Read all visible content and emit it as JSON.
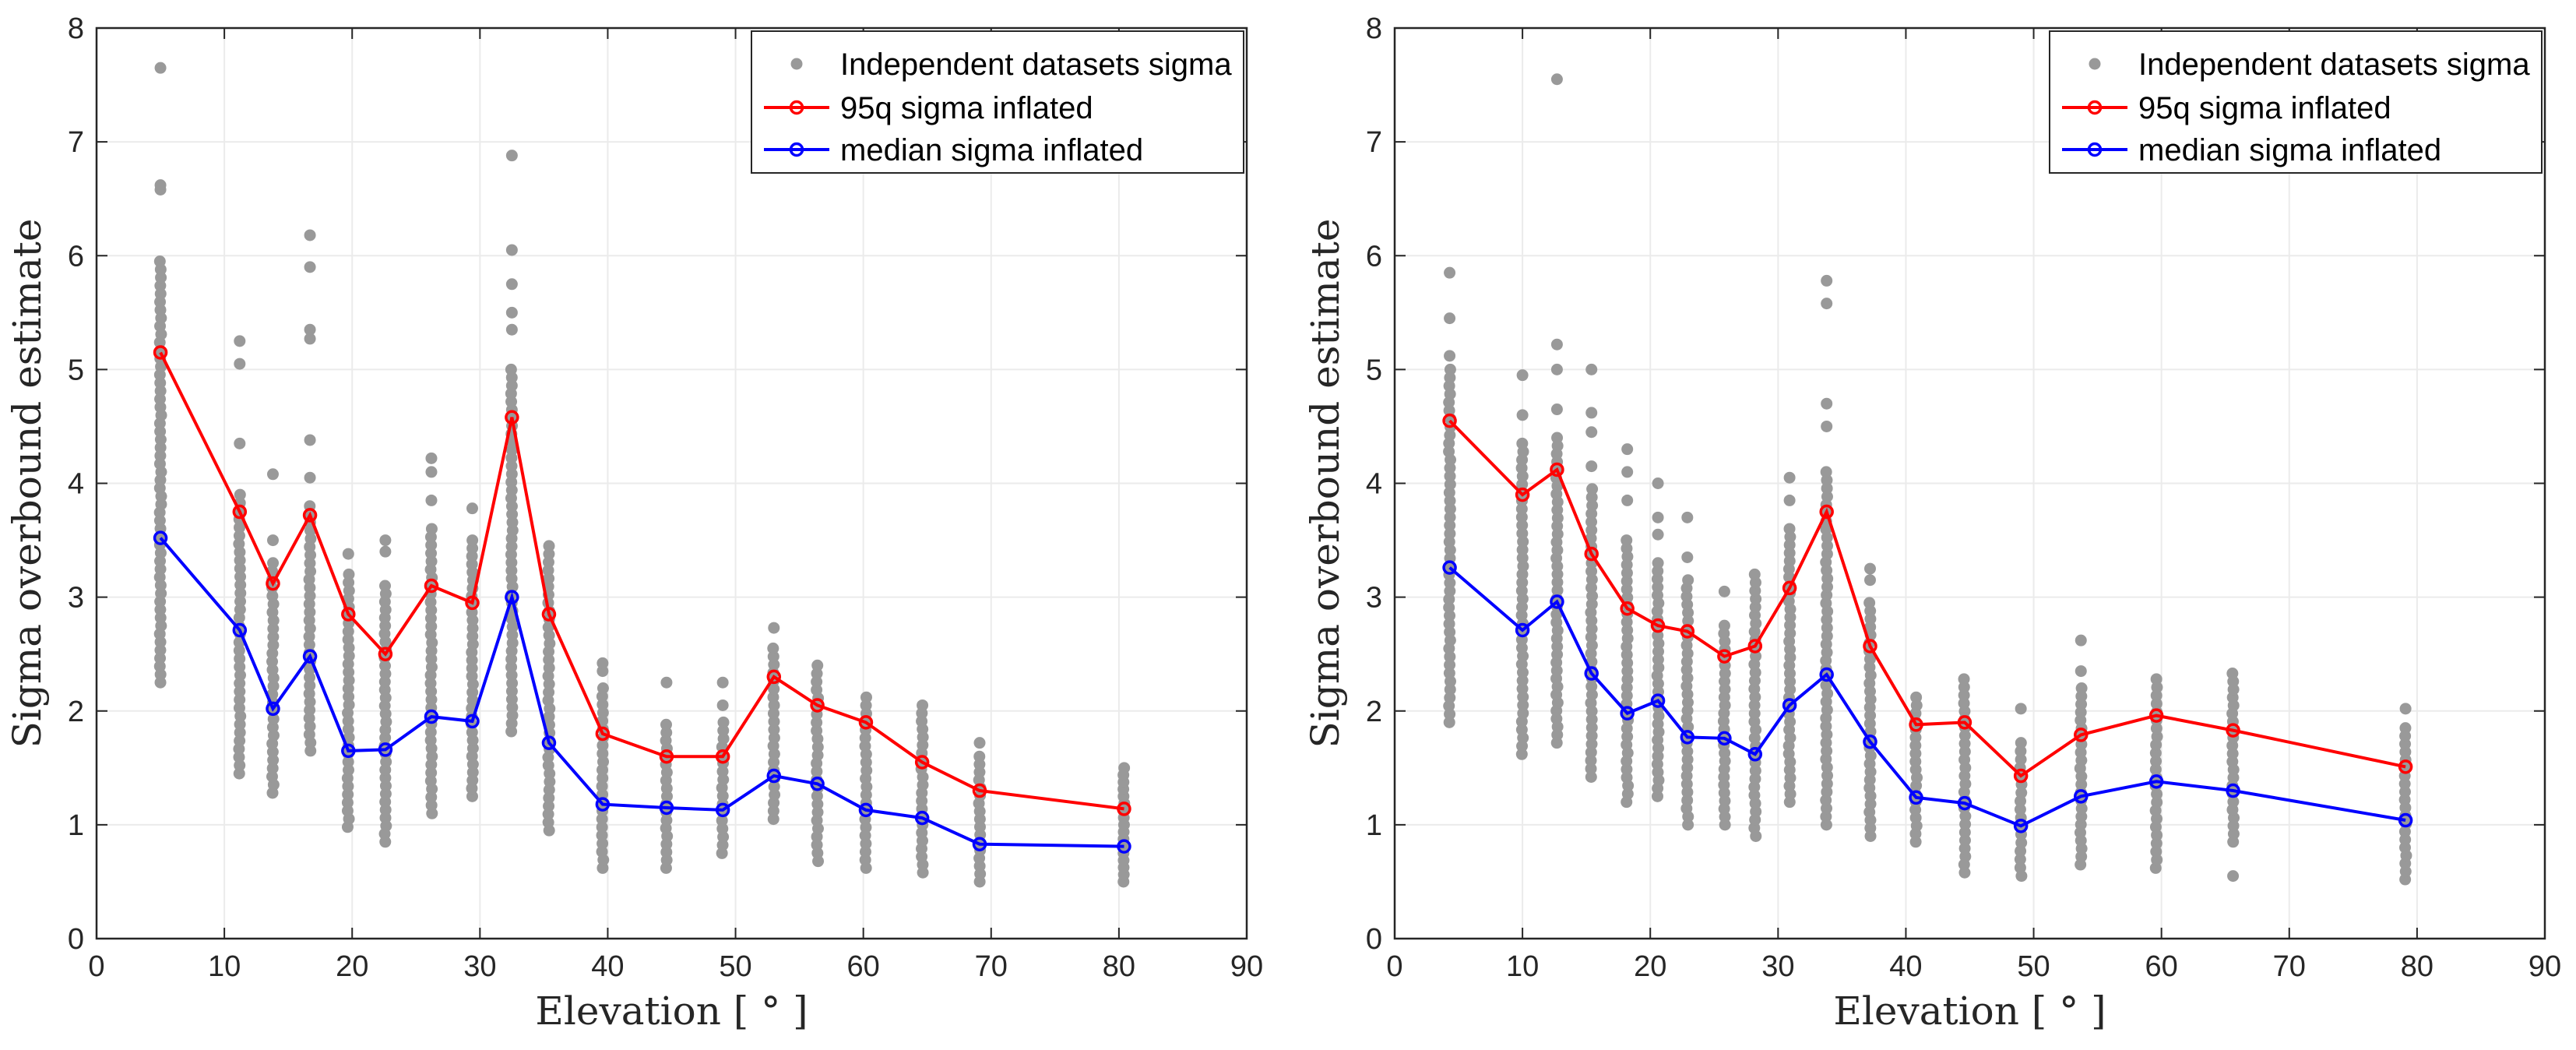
{
  "chart_data": [
    {
      "type": "scatter",
      "panel": "left",
      "xlabel": "Elevation [ ° ]",
      "ylabel": "Sigma overbound estimate",
      "xlim": [
        0,
        90
      ],
      "ylim": [
        0,
        8
      ],
      "xticks": [
        "0",
        "10",
        "20",
        "30",
        "40",
        "50",
        "60",
        "70",
        "80",
        "90"
      ],
      "yticks": [
        "0",
        "1",
        "2",
        "3",
        "4",
        "5",
        "6",
        "7",
        "8"
      ],
      "grid": true,
      "legend_position": "top-right",
      "legend": [
        "Independent datasets sigma",
        "95q sigma inflated",
        "median sigma inflated"
      ],
      "scatter_columns": [
        {
          "x": 5,
          "min": 2.25,
          "max": 5.95,
          "outliers": [
            6.58,
            6.62,
            7.65
          ]
        },
        {
          "x": 11.2,
          "min": 1.45,
          "max": 3.9,
          "outliers": [
            4.35,
            5.05,
            5.25
          ]
        },
        {
          "x": 13.8,
          "min": 1.28,
          "max": 3.3,
          "outliers": [
            3.5,
            4.08
          ]
        },
        {
          "x": 16.7,
          "min": 1.65,
          "max": 3.8,
          "outliers": [
            4.05,
            4.38,
            5.27,
            5.35,
            5.9,
            6.18
          ]
        },
        {
          "x": 19.7,
          "min": 0.98,
          "max": 3.2,
          "outliers": [
            3.38
          ]
        },
        {
          "x": 22.6,
          "min": 0.85,
          "max": 3.1,
          "outliers": [
            3.4,
            3.5
          ]
        },
        {
          "x": 26.2,
          "min": 1.1,
          "max": 3.6,
          "outliers": [
            3.85,
            4.1,
            4.22
          ]
        },
        {
          "x": 29.4,
          "min": 1.25,
          "max": 3.5,
          "outliers": [
            3.78
          ]
        },
        {
          "x": 32.5,
          "min": 1.82,
          "max": 5.0,
          "outliers": [
            5.35,
            5.5,
            5.75,
            6.05,
            6.88
          ]
        },
        {
          "x": 35.4,
          "min": 0.95,
          "max": 3.45,
          "outliers": []
        },
        {
          "x": 39.6,
          "min": 0.62,
          "max": 2.2,
          "outliers": [
            2.35,
            2.42
          ]
        },
        {
          "x": 44.6,
          "min": 0.62,
          "max": 1.88,
          "outliers": [
            2.25
          ]
        },
        {
          "x": 49,
          "min": 0.75,
          "max": 1.9,
          "outliers": [
            2.05,
            2.25
          ]
        },
        {
          "x": 53,
          "min": 1.05,
          "max": 2.55,
          "outliers": [
            2.73
          ]
        },
        {
          "x": 56.4,
          "min": 0.68,
          "max": 2.4,
          "outliers": []
        },
        {
          "x": 60.2,
          "min": 0.62,
          "max": 2.12,
          "outliers": []
        },
        {
          "x": 64.6,
          "min": 0.58,
          "max": 2.05,
          "outliers": []
        },
        {
          "x": 69.1,
          "min": 0.5,
          "max": 1.6,
          "outliers": [
            1.72
          ]
        },
        {
          "x": 80.4,
          "min": 0.5,
          "max": 1.5,
          "outliers": []
        }
      ],
      "series": [
        {
          "name": "95q sigma inflated",
          "color": "#ff0000",
          "x": [
            5,
            11.2,
            13.8,
            16.7,
            19.7,
            22.6,
            26.2,
            29.4,
            32.5,
            35.4,
            39.6,
            44.6,
            49,
            53,
            56.4,
            60.2,
            64.6,
            69.1,
            80.4
          ],
          "y": [
            5.15,
            3.75,
            3.12,
            3.72,
            2.85,
            2.5,
            3.1,
            2.95,
            4.58,
            2.85,
            1.8,
            1.6,
            1.6,
            2.3,
            2.05,
            1.9,
            1.55,
            1.3,
            1.14
          ]
        },
        {
          "name": "median sigma inflated",
          "color": "#0000ff",
          "x": [
            5,
            11.2,
            13.8,
            16.7,
            19.7,
            22.6,
            26.2,
            29.4,
            32.5,
            35.4,
            39.6,
            44.6,
            49,
            53,
            56.4,
            60.2,
            64.6,
            69.1,
            80.4
          ],
          "y": [
            3.52,
            2.71,
            2.02,
            2.48,
            1.65,
            1.66,
            1.95,
            1.91,
            3.0,
            1.72,
            1.18,
            1.15,
            1.13,
            1.43,
            1.36,
            1.13,
            1.06,
            0.83,
            0.81
          ]
        }
      ]
    },
    {
      "type": "scatter",
      "panel": "right",
      "xlabel": "Elevation [ ° ]",
      "ylabel": "Sigma overbound estimate",
      "xlim": [
        0,
        90
      ],
      "ylim": [
        0,
        8
      ],
      "xticks": [
        "0",
        "10",
        "20",
        "30",
        "40",
        "50",
        "60",
        "70",
        "80",
        "90"
      ],
      "yticks": [
        "0",
        "1",
        "2",
        "3",
        "4",
        "5",
        "6",
        "7",
        "8"
      ],
      "grid": true,
      "legend_position": "top-right",
      "legend": [
        "Independent datasets sigma",
        "95q sigma inflated",
        "median sigma inflated"
      ],
      "scatter_columns": [
        {
          "x": 4.3,
          "min": 1.9,
          "max": 5.0,
          "outliers": [
            5.12,
            5.45,
            5.85
          ]
        },
        {
          "x": 10,
          "min": 1.62,
          "max": 4.35,
          "outliers": [
            4.6,
            4.95
          ]
        },
        {
          "x": 12.7,
          "min": 1.72,
          "max": 4.4,
          "outliers": [
            4.65,
            5.0,
            5.22,
            7.55
          ]
        },
        {
          "x": 15.4,
          "min": 1.42,
          "max": 3.95,
          "outliers": [
            4.15,
            4.45,
            4.62,
            5.0
          ]
        },
        {
          "x": 18.2,
          "min": 1.2,
          "max": 3.5,
          "outliers": [
            3.85,
            4.1,
            4.3
          ]
        },
        {
          "x": 20.6,
          "min": 1.25,
          "max": 3.3,
          "outliers": [
            3.55,
            3.7,
            4.0
          ]
        },
        {
          "x": 22.9,
          "min": 1.0,
          "max": 3.15,
          "outliers": [
            3.35,
            3.7
          ]
        },
        {
          "x": 25.8,
          "min": 1.0,
          "max": 2.75,
          "outliers": [
            3.05
          ]
        },
        {
          "x": 28.2,
          "min": 0.9,
          "max": 3.2,
          "outliers": []
        },
        {
          "x": 30.9,
          "min": 1.2,
          "max": 3.6,
          "outliers": [
            3.85,
            4.05
          ]
        },
        {
          "x": 33.8,
          "min": 1.0,
          "max": 4.1,
          "outliers": [
            4.5,
            4.7,
            5.58,
            5.78
          ]
        },
        {
          "x": 37.2,
          "min": 0.9,
          "max": 2.95,
          "outliers": [
            3.15,
            3.25
          ]
        },
        {
          "x": 40.8,
          "min": 0.85,
          "max": 2.12,
          "outliers": []
        },
        {
          "x": 44.6,
          "min": 0.58,
          "max": 2.28,
          "outliers": []
        },
        {
          "x": 49,
          "min": 0.55,
          "max": 1.72,
          "outliers": [
            2.02
          ]
        },
        {
          "x": 53.7,
          "min": 0.65,
          "max": 2.2,
          "outliers": [
            2.35,
            2.62
          ]
        },
        {
          "x": 59.6,
          "min": 0.62,
          "max": 2.28,
          "outliers": []
        },
        {
          "x": 65.6,
          "min": 0.85,
          "max": 2.33,
          "outliers": [
            0.55
          ]
        },
        {
          "x": 79.1,
          "min": 0.52,
          "max": 1.85,
          "outliers": [
            2.02
          ]
        }
      ],
      "series": [
        {
          "name": "95q sigma inflated",
          "color": "#ff0000",
          "x": [
            4.3,
            10,
            12.7,
            15.4,
            18.2,
            20.6,
            22.9,
            25.8,
            28.2,
            30.9,
            33.8,
            37.2,
            40.8,
            44.6,
            49,
            53.7,
            59.6,
            65.6,
            79.1
          ],
          "y": [
            4.55,
            3.9,
            4.12,
            3.38,
            2.9,
            2.75,
            2.7,
            2.48,
            2.57,
            3.08,
            3.75,
            2.57,
            1.88,
            1.9,
            1.43,
            1.79,
            1.96,
            1.83,
            1.51
          ]
        },
        {
          "name": "median sigma inflated",
          "color": "#0000ff",
          "x": [
            4.3,
            10,
            12.7,
            15.4,
            18.2,
            20.6,
            22.9,
            25.8,
            28.2,
            30.9,
            33.8,
            37.2,
            40.8,
            44.6,
            49,
            53.7,
            59.6,
            65.6,
            79.1
          ],
          "y": [
            3.26,
            2.71,
            2.96,
            2.33,
            1.98,
            2.09,
            1.77,
            1.76,
            1.62,
            2.05,
            2.32,
            1.73,
            1.24,
            1.19,
            0.99,
            1.25,
            1.38,
            1.3,
            1.04
          ]
        }
      ]
    }
  ],
  "colors": {
    "scatter": "#999999",
    "grid": "#ebebeb",
    "axes": "#262626"
  }
}
